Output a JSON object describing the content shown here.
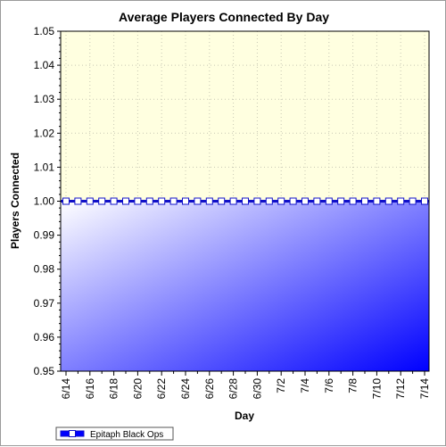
{
  "chart_data": {
    "type": "area",
    "title": "Average Players Connected By Day",
    "xlabel": "Day",
    "ylabel": "Players Connected",
    "ylim": [
      0.95,
      1.05
    ],
    "yticks": [
      "0.95",
      "0.96",
      "0.97",
      "0.98",
      "0.99",
      "1.00",
      "1.01",
      "1.02",
      "1.03",
      "1.04",
      "1.05"
    ],
    "xtick_labels": [
      "6/14",
      "6/16",
      "6/18",
      "6/20",
      "6/22",
      "6/24",
      "6/26",
      "6/28",
      "6/30",
      "7/2",
      "7/4",
      "7/6",
      "7/8",
      "7/10",
      "7/12",
      "7/14"
    ],
    "x": [
      "6/14",
      "6/15",
      "6/16",
      "6/17",
      "6/18",
      "6/19",
      "6/20",
      "6/21",
      "6/22",
      "6/23",
      "6/24",
      "6/25",
      "6/26",
      "6/27",
      "6/28",
      "6/29",
      "6/30",
      "7/1",
      "7/2",
      "7/3",
      "7/4",
      "7/5",
      "7/6",
      "7/7",
      "7/8",
      "7/9",
      "7/10",
      "7/11",
      "7/12",
      "7/13",
      "7/14"
    ],
    "series": [
      {
        "name": "Epitaph Black Ops",
        "values": [
          1,
          1,
          1,
          1,
          1,
          1,
          1,
          1,
          1,
          1,
          1,
          1,
          1,
          1,
          1,
          1,
          1,
          1,
          1,
          1,
          1,
          1,
          1,
          1,
          1,
          1,
          1,
          1,
          1,
          1,
          1
        ]
      }
    ],
    "grid": true,
    "legend": "bottom-left",
    "colors": {
      "background_top": "#ffffe0",
      "fill_light": "#ffffff",
      "fill_dark": "#0000ff",
      "line": "#1010c8",
      "marker_fill": "#ffffff"
    }
  }
}
